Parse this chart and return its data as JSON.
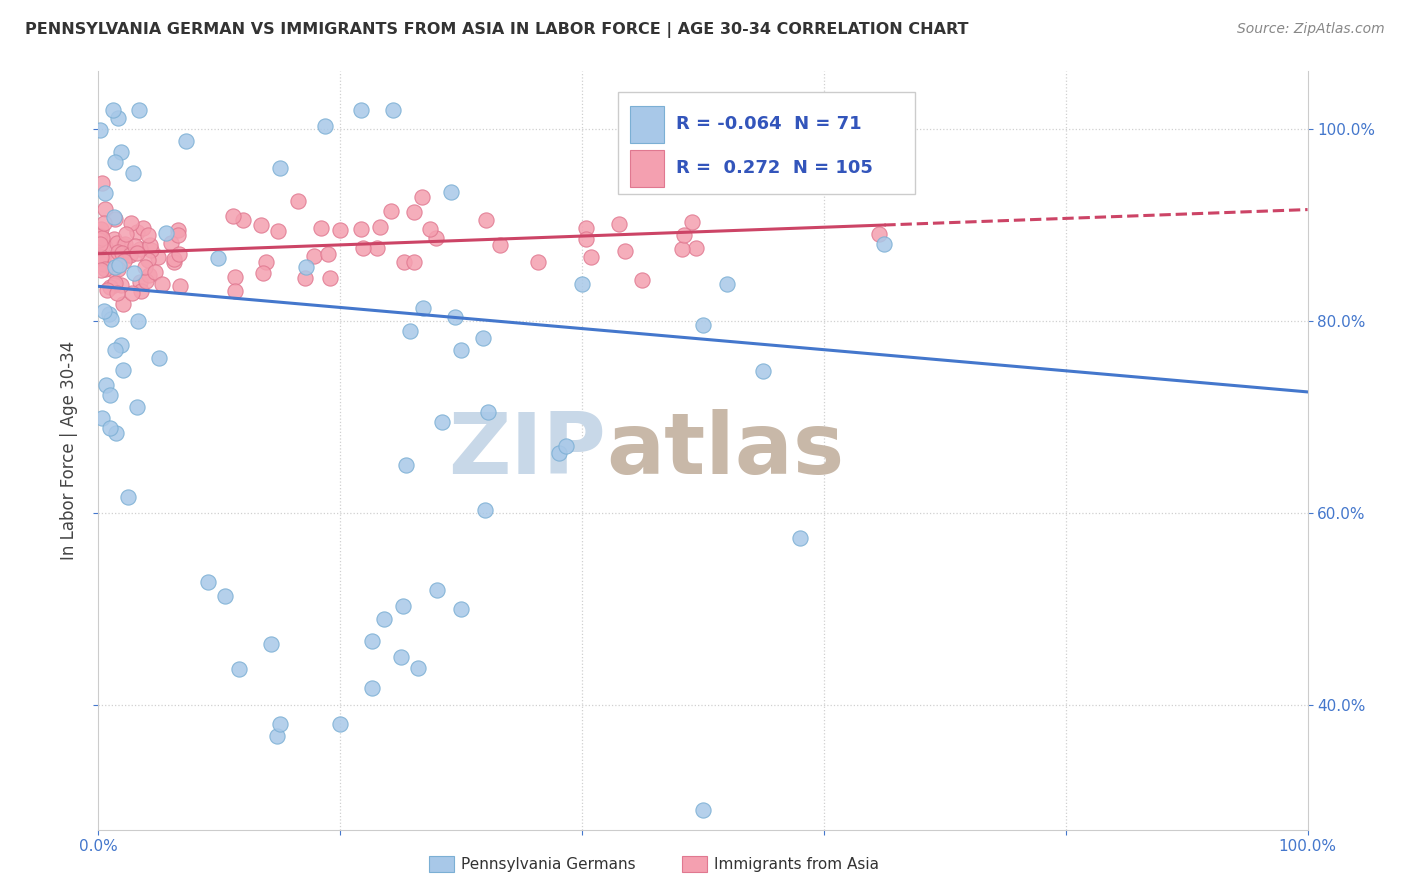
{
  "title": "PENNSYLVANIA GERMAN VS IMMIGRANTS FROM ASIA IN LABOR FORCE | AGE 30-34 CORRELATION CHART",
  "source": "Source: ZipAtlas.com",
  "ylabel": "In Labor Force | Age 30-34",
  "xlim": [
    0.0,
    1.0
  ],
  "ylim": [
    0.27,
    1.06
  ],
  "legend_r_blue": "-0.064",
  "legend_n_blue": "71",
  "legend_r_pink": "0.272",
  "legend_n_pink": "105",
  "blue_color": "#a8c8e8",
  "blue_edge_color": "#7bafd4",
  "pink_color": "#f4a0b0",
  "pink_edge_color": "#e07890",
  "blue_line_color": "#4477cc",
  "pink_line_color": "#cc4466",
  "blue_line_ystart": 0.836,
  "blue_line_yend": 0.726,
  "pink_line_ystart": 0.87,
  "pink_line_yend": 0.916,
  "watermark_zip_color": "#c8d8e8",
  "watermark_atlas_color": "#c8b8a8"
}
